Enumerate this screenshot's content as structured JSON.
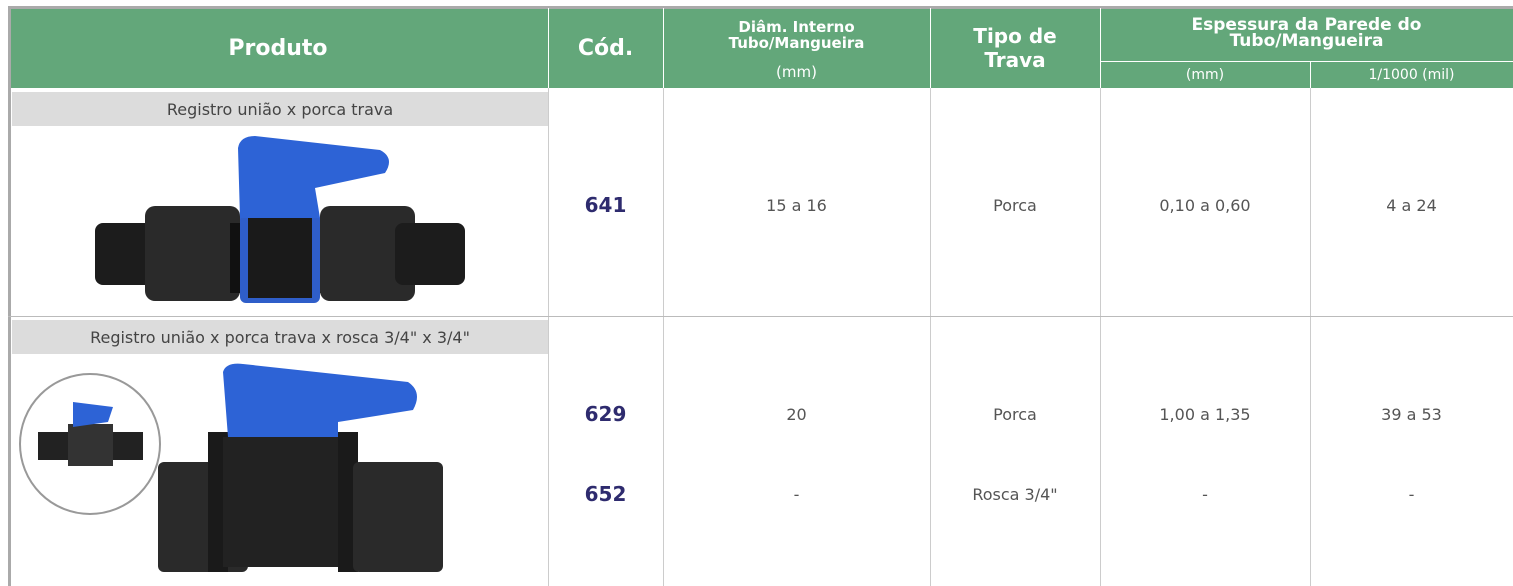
{
  "header": {
    "product": "Produto",
    "code": "Cód.",
    "diameter_title": "Diâm. Interno Tubo/Mangueira",
    "diameter_unit": "(mm)",
    "lock_type": "Tipo de Trava",
    "wall_title": "Espessura da Parede do Tubo/Mangueira",
    "wall_mm": "(mm)",
    "wall_mil": "1/1000 (mil)"
  },
  "rows": [
    {
      "product": "Registro união x porca trava",
      "items": [
        {
          "code": "641",
          "diameter": "15 a 16",
          "lock": "Porca",
          "wall_mm": "0,10 a 0,60",
          "wall_mil": "4 a 24"
        }
      ]
    },
    {
      "product": "Registro união x porca trava x rosca 3/4\" x 3/4\"",
      "items": [
        {
          "code": "629",
          "diameter": "20",
          "lock": "Porca",
          "wall_mm": "1,00 a 1,35",
          "wall_mil": "39 a 53"
        },
        {
          "code": "652",
          "diameter": "-",
          "lock": "Rosca 3/4\"",
          "wall_mm": "-",
          "wall_mil": "-"
        }
      ]
    }
  ]
}
